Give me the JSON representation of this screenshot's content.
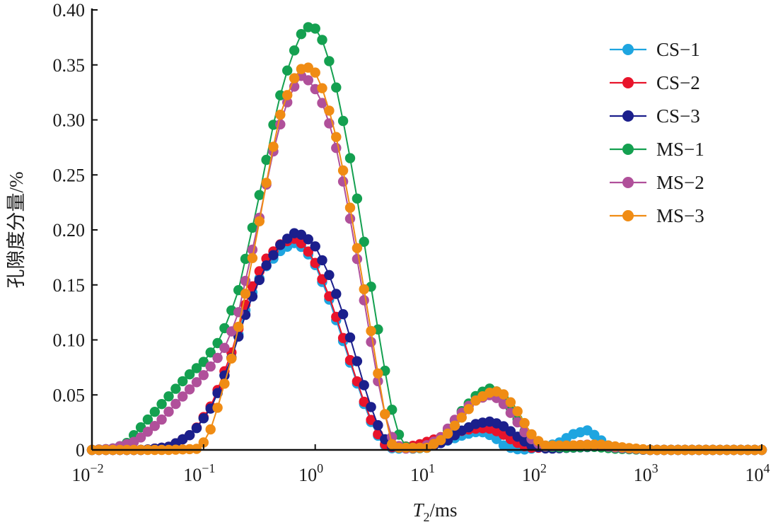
{
  "chart_data": {
    "type": "line",
    "title": "",
    "xlabel": "T2/ms",
    "xlabel_parts": {
      "main": "T",
      "sub": "2",
      "rest": "/ms"
    },
    "ylabel": "孔隙度分量/%",
    "x_scale": "log",
    "xlim": [
      0.01,
      10000
    ],
    "ylim": [
      0,
      0.4
    ],
    "x_ticks": [
      {
        "value": 0.01,
        "base": "10",
        "exp": "−2"
      },
      {
        "value": 0.1,
        "base": "10",
        "exp": "−1"
      },
      {
        "value": 1,
        "base": "10",
        "exp": "0"
      },
      {
        "value": 10,
        "base": "10",
        "exp": "1"
      },
      {
        "value": 100,
        "base": "10",
        "exp": "2"
      },
      {
        "value": 1000,
        "base": "10",
        "exp": "3"
      },
      {
        "value": 10000,
        "base": "10",
        "exp": "4"
      }
    ],
    "y_ticks": [
      {
        "value": 0,
        "label": "0"
      },
      {
        "value": 0.05,
        "label": "0.05"
      },
      {
        "value": 0.1,
        "label": "0.10"
      },
      {
        "value": 0.15,
        "label": "0.15"
      },
      {
        "value": 0.2,
        "label": "0.20"
      },
      {
        "value": 0.25,
        "label": "0.25"
      },
      {
        "value": 0.3,
        "label": "0.30"
      },
      {
        "value": 0.35,
        "label": "0.35"
      },
      {
        "value": 0.4,
        "label": "0.40"
      }
    ],
    "grid": false,
    "legend_position": "top-right",
    "series": [
      {
        "name": "CS−1",
        "color": "#1ea5e0",
        "points": [
          [
            0.01,
            0
          ],
          [
            0.03,
            0
          ],
          [
            0.05,
            0.003
          ],
          [
            0.08,
            0.015
          ],
          [
            0.12,
            0.04
          ],
          [
            0.18,
            0.085
          ],
          [
            0.25,
            0.135
          ],
          [
            0.35,
            0.165
          ],
          [
            0.5,
            0.182
          ],
          [
            0.65,
            0.188
          ],
          [
            0.8,
            0.183
          ],
          [
            1.0,
            0.168
          ],
          [
            1.3,
            0.14
          ],
          [
            1.7,
            0.105
          ],
          [
            2.2,
            0.07
          ],
          [
            3.0,
            0.03
          ],
          [
            4.0,
            0.005
          ],
          [
            5.0,
            0.001
          ],
          [
            10,
            0.002
          ],
          [
            15,
            0.008
          ],
          [
            22,
            0.014
          ],
          [
            30,
            0.017
          ],
          [
            40,
            0.012
          ],
          [
            50,
            0.003
          ],
          [
            70,
            0
          ],
          [
            100,
            0.002
          ],
          [
            150,
            0.006
          ],
          [
            200,
            0.014
          ],
          [
            280,
            0.018
          ],
          [
            350,
            0.01
          ],
          [
            450,
            0.002
          ],
          [
            600,
            0.001
          ],
          [
            1000,
            0
          ],
          [
            10000,
            0
          ]
        ]
      },
      {
        "name": "CS−2",
        "color": "#e8142b",
        "points": [
          [
            0.01,
            0
          ],
          [
            0.03,
            0
          ],
          [
            0.05,
            0.003
          ],
          [
            0.08,
            0.015
          ],
          [
            0.12,
            0.042
          ],
          [
            0.18,
            0.09
          ],
          [
            0.25,
            0.14
          ],
          [
            0.35,
            0.172
          ],
          [
            0.5,
            0.188
          ],
          [
            0.65,
            0.192
          ],
          [
            0.8,
            0.186
          ],
          [
            1.0,
            0.17
          ],
          [
            1.3,
            0.143
          ],
          [
            1.7,
            0.108
          ],
          [
            2.2,
            0.072
          ],
          [
            3.0,
            0.032
          ],
          [
            4.0,
            0.006
          ],
          [
            5.0,
            0.002
          ],
          [
            8,
            0.004
          ],
          [
            12,
            0.01
          ],
          [
            18,
            0.016
          ],
          [
            25,
            0.019
          ],
          [
            35,
            0.02
          ],
          [
            45,
            0.016
          ],
          [
            60,
            0.008
          ],
          [
            80,
            0.002
          ],
          [
            120,
            0.002
          ],
          [
            200,
            0.003
          ],
          [
            300,
            0.005
          ],
          [
            400,
            0.003
          ],
          [
            600,
            0.001
          ],
          [
            1000,
            0
          ],
          [
            10000,
            0
          ]
        ]
      },
      {
        "name": "CS−3",
        "color": "#1b1f8c",
        "points": [
          [
            0.01,
            0
          ],
          [
            0.03,
            0
          ],
          [
            0.05,
            0.003
          ],
          [
            0.08,
            0.015
          ],
          [
            0.12,
            0.04
          ],
          [
            0.18,
            0.085
          ],
          [
            0.25,
            0.13
          ],
          [
            0.35,
            0.165
          ],
          [
            0.5,
            0.188
          ],
          [
            0.65,
            0.197
          ],
          [
            0.8,
            0.195
          ],
          [
            1.0,
            0.185
          ],
          [
            1.3,
            0.162
          ],
          [
            1.7,
            0.13
          ],
          [
            2.2,
            0.092
          ],
          [
            3.0,
            0.045
          ],
          [
            4.0,
            0.012
          ],
          [
            5.0,
            0.002
          ],
          [
            10,
            0.002
          ],
          [
            15,
            0.008
          ],
          [
            20,
            0.017
          ],
          [
            28,
            0.024
          ],
          [
            38,
            0.026
          ],
          [
            50,
            0.021
          ],
          [
            65,
            0.012
          ],
          [
            85,
            0.004
          ],
          [
            120,
            0.001
          ],
          [
            200,
            0.002
          ],
          [
            350,
            0.003
          ],
          [
            600,
            0.001
          ],
          [
            1000,
            0
          ],
          [
            10000,
            0
          ]
        ]
      },
      {
        "name": "MS−1",
        "color": "#14a050",
        "points": [
          [
            0.01,
            0
          ],
          [
            0.015,
            0.001
          ],
          [
            0.02,
            0.005
          ],
          [
            0.03,
            0.025
          ],
          [
            0.05,
            0.05
          ],
          [
            0.07,
            0.066
          ],
          [
            0.1,
            0.08
          ],
          [
            0.14,
            0.1
          ],
          [
            0.2,
            0.14
          ],
          [
            0.3,
            0.22
          ],
          [
            0.45,
            0.31
          ],
          [
            0.6,
            0.355
          ],
          [
            0.75,
            0.378
          ],
          [
            0.9,
            0.386
          ],
          [
            1.0,
            0.383
          ],
          [
            1.2,
            0.37
          ],
          [
            1.5,
            0.335
          ],
          [
            1.9,
            0.285
          ],
          [
            2.5,
            0.215
          ],
          [
            3.2,
            0.145
          ],
          [
            4.0,
            0.085
          ],
          [
            5.0,
            0.03
          ],
          [
            6.0,
            0.005
          ],
          [
            7.0,
            0.001
          ],
          [
            10,
            0.002
          ],
          [
            14,
            0.012
          ],
          [
            20,
            0.034
          ],
          [
            28,
            0.05
          ],
          [
            36,
            0.056
          ],
          [
            45,
            0.052
          ],
          [
            60,
            0.034
          ],
          [
            80,
            0.012
          ],
          [
            110,
            0.003
          ],
          [
            180,
            0.002
          ],
          [
            300,
            0.003
          ],
          [
            500,
            0.001
          ],
          [
            1000,
            0
          ],
          [
            10000,
            0
          ]
        ]
      },
      {
        "name": "MS−2",
        "color": "#b0509a",
        "points": [
          [
            0.01,
            0
          ],
          [
            0.015,
            0.001
          ],
          [
            0.025,
            0.008
          ],
          [
            0.04,
            0.025
          ],
          [
            0.06,
            0.045
          ],
          [
            0.08,
            0.058
          ],
          [
            0.1,
            0.068
          ],
          [
            0.15,
            0.09
          ],
          [
            0.2,
            0.12
          ],
          [
            0.3,
            0.2
          ],
          [
            0.45,
            0.285
          ],
          [
            0.6,
            0.325
          ],
          [
            0.75,
            0.34
          ],
          [
            0.9,
            0.335
          ],
          [
            1.0,
            0.328
          ],
          [
            1.2,
            0.312
          ],
          [
            1.5,
            0.28
          ],
          [
            1.9,
            0.23
          ],
          [
            2.5,
            0.16
          ],
          [
            3.2,
            0.095
          ],
          [
            4.0,
            0.04
          ],
          [
            5.0,
            0.008
          ],
          [
            6.0,
            0.001
          ],
          [
            9,
            0.002
          ],
          [
            13,
            0.01
          ],
          [
            18,
            0.028
          ],
          [
            26,
            0.044
          ],
          [
            36,
            0.05
          ],
          [
            45,
            0.046
          ],
          [
            60,
            0.03
          ],
          [
            80,
            0.012
          ],
          [
            110,
            0.003
          ],
          [
            200,
            0.004
          ],
          [
            300,
            0.005
          ],
          [
            500,
            0.002
          ],
          [
            1000,
            0
          ],
          [
            10000,
            0
          ]
        ]
      },
      {
        "name": "MS−3",
        "color": "#f08c14",
        "points": [
          [
            0.01,
            0
          ],
          [
            0.05,
            0
          ],
          [
            0.09,
            0.001
          ],
          [
            0.11,
            0.012
          ],
          [
            0.14,
            0.045
          ],
          [
            0.18,
            0.085
          ],
          [
            0.23,
            0.135
          ],
          [
            0.3,
            0.195
          ],
          [
            0.4,
            0.265
          ],
          [
            0.5,
            0.31
          ],
          [
            0.65,
            0.338
          ],
          [
            0.8,
            0.35
          ],
          [
            1.0,
            0.343
          ],
          [
            1.2,
            0.325
          ],
          [
            1.5,
            0.29
          ],
          [
            1.9,
            0.24
          ],
          [
            2.5,
            0.17
          ],
          [
            3.2,
            0.105
          ],
          [
            4.0,
            0.045
          ],
          [
            4.6,
            0.012
          ],
          [
            5.0,
            0.002
          ],
          [
            10,
            0.002
          ],
          [
            14,
            0.01
          ],
          [
            20,
            0.028
          ],
          [
            28,
            0.046
          ],
          [
            40,
            0.054
          ],
          [
            50,
            0.05
          ],
          [
            65,
            0.035
          ],
          [
            85,
            0.015
          ],
          [
            110,
            0.004
          ],
          [
            200,
            0.004
          ],
          [
            350,
            0.005
          ],
          [
            600,
            0.002
          ],
          [
            1000,
            0
          ],
          [
            10000,
            0
          ]
        ]
      }
    ]
  }
}
